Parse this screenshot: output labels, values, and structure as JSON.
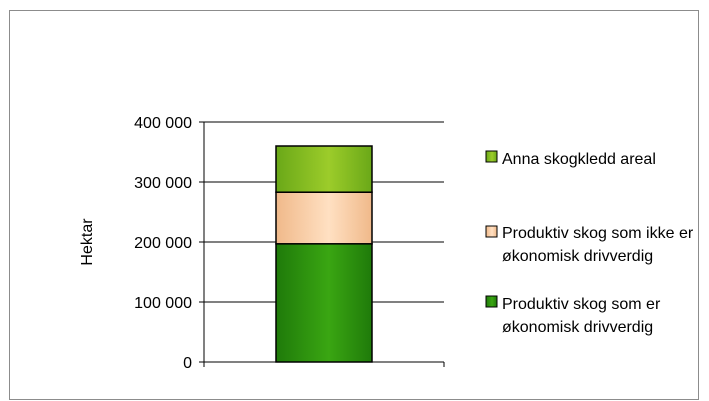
{
  "chart_data": {
    "type": "bar",
    "stacked": true,
    "title": "",
    "xlabel": "",
    "ylabel": "Hektar",
    "ylim": [
      0,
      400000
    ],
    "yticks": [
      "0",
      "100 000",
      "200 000",
      "300 000",
      "400 000"
    ],
    "yticks_values": [
      0,
      100000,
      200000,
      300000,
      400000
    ],
    "grid": true,
    "legend_position": "right",
    "categories": [
      ""
    ],
    "series": [
      {
        "name": "Produktiv skog som er økonomisk drivverdig",
        "legend_lines": [
          "Produktiv skog som er",
          "økonomisk drivverdig"
        ],
        "values": [
          197000
        ],
        "color": "#1f7a0a",
        "color_light": "#3aa612"
      },
      {
        "name": "Produktiv skog som ikke er økonomisk drivverdig",
        "legend_lines": [
          "Produktiv skog som ikke er",
          "økonomisk drivverdig"
        ],
        "values": [
          86000
        ],
        "color": "#f0b98a",
        "color_light": "#ffe0c2"
      },
      {
        "name": "Anna skogkledd areal",
        "legend_lines": [
          "Anna skogkledd areal"
        ],
        "values": [
          77000
        ],
        "color": "#6aa818",
        "color_light": "#9ccc2a"
      }
    ]
  }
}
